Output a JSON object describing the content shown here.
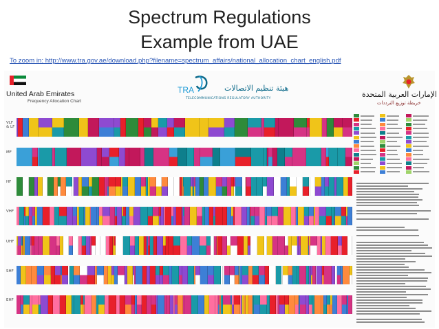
{
  "slide": {
    "title_line1": "Spectrum Regulations",
    "title_line2": "Example from UAE",
    "link_text": "To zoom in: http://www.tra.gov.ae/download.php?filename=spectrum_affairs/national_allocation_chart_english.pdf"
  },
  "chart_image": {
    "left_brand": "United Arab Emirates",
    "left_brand_sub": "Frequency Allocation Chart",
    "tra_arabic": "هيئة تنظيم الاتصالات",
    "tra_sub": "TELECOMMUNICATIONS REGULATORY AUTHORITY",
    "right_brand": "الإمارات العربية المتحدة",
    "right_brand_sub": "خريطة توزيع الترددات",
    "band_labels": [
      "VLF & LF",
      "MF",
      "HF",
      "VHF",
      "UHF",
      "SHF",
      "EHF"
    ],
    "colors": {
      "title": "#222222",
      "link": "#2a56b5",
      "fixed_red": "#e8202a",
      "mobile_magenta": "#d63384",
      "broadcast_teal": "#1a9aa8",
      "aero_blue": "#3d7fd6"
    },
    "icons": [
      "uae-flag-icon",
      "tra-logo-icon",
      "uae-emblem-icon"
    ]
  }
}
